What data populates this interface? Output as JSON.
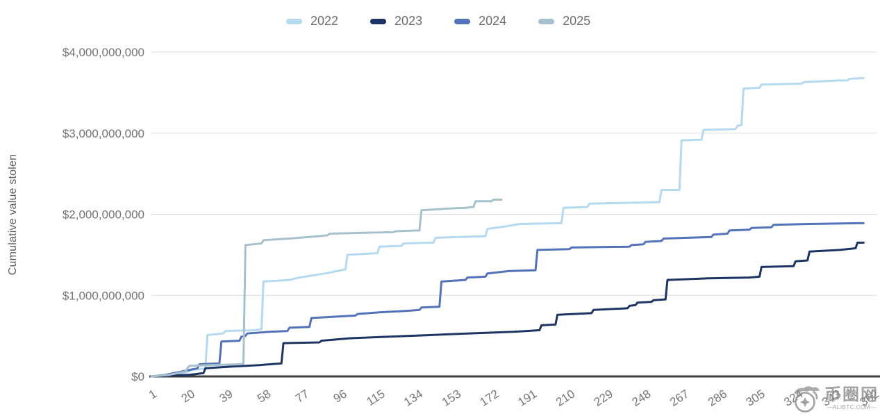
{
  "legend": {
    "items": [
      {
        "label": "2022",
        "color": "#b5d9ef"
      },
      {
        "label": "2023",
        "color": "#1c3363"
      },
      {
        "label": "2024",
        "color": "#5472ba"
      },
      {
        "label": "2025",
        "color": "#a6c1cc"
      }
    ]
  },
  "watermark": {
    "site_name": "币圈网",
    "domain": "—ALIBTC.COM—"
  },
  "chart_data": {
    "type": "line",
    "title": "",
    "xlabel": "",
    "ylabel": "Cumulative value stolen",
    "value_unit": "USD billions (cumulative value stolen by day of year)",
    "line_style": "stepped cumulative lines",
    "grid": "horizontal only",
    "legend_position": "top",
    "xlim": [
      1,
      366
    ],
    "ylim_billions": [
      0,
      4
    ],
    "x_tick_labels": [
      "1",
      "20",
      "39",
      "58",
      "77",
      "96",
      "115",
      "134",
      "153",
      "172",
      "191",
      "210",
      "229",
      "248",
      "267",
      "286",
      "305",
      "324",
      "343",
      "362"
    ],
    "y_ticks": [
      {
        "value_billions": 0,
        "label": "$0"
      },
      {
        "value_billions": 1,
        "label": "$1,000,000,000"
      },
      {
        "value_billions": 2,
        "label": "$2,000,000,000"
      },
      {
        "value_billions": 3,
        "label": "$3,000,000,000"
      },
      {
        "value_billions": 4,
        "label": "$4,000,000,000"
      }
    ],
    "series": [
      {
        "name": "2022",
        "color": "#b5d9ef",
        "points_day_billions": [
          [
            1,
            0
          ],
          [
            8,
            0.01
          ],
          [
            14,
            0.03
          ],
          [
            18,
            0.05
          ],
          [
            22,
            0.08
          ],
          [
            28,
            0.1
          ],
          [
            29,
            0.51
          ],
          [
            37,
            0.53
          ],
          [
            38,
            0.56
          ],
          [
            52,
            0.57
          ],
          [
            56,
            0.58
          ],
          [
            57,
            1.17
          ],
          [
            70,
            1.19
          ],
          [
            75,
            1.22
          ],
          [
            88,
            1.27
          ],
          [
            98,
            1.32
          ],
          [
            99,
            1.5
          ],
          [
            114,
            1.52
          ],
          [
            115,
            1.6
          ],
          [
            126,
            1.61
          ],
          [
            127,
            1.64
          ],
          [
            142,
            1.65
          ],
          [
            143,
            1.71
          ],
          [
            168,
            1.73
          ],
          [
            169,
            1.82
          ],
          [
            178,
            1.85
          ],
          [
            185,
            1.88
          ],
          [
            206,
            1.89
          ],
          [
            207,
            2.08
          ],
          [
            219,
            2.09
          ],
          [
            220,
            2.13
          ],
          [
            255,
            2.15
          ],
          [
            256,
            2.3
          ],
          [
            265,
            2.3
          ],
          [
            266,
            2.91
          ],
          [
            276,
            2.92
          ],
          [
            277,
            3.04
          ],
          [
            293,
            3.05
          ],
          [
            294,
            3.09
          ],
          [
            296,
            3.1
          ],
          [
            297,
            3.55
          ],
          [
            305,
            3.56
          ],
          [
            306,
            3.6
          ],
          [
            326,
            3.61
          ],
          [
            327,
            3.63
          ],
          [
            344,
            3.65
          ],
          [
            349,
            3.65
          ],
          [
            350,
            3.67
          ],
          [
            357,
            3.68
          ]
        ]
      },
      {
        "name": "2023",
        "color": "#1c3363",
        "points_day_billions": [
          [
            1,
            0
          ],
          [
            10,
            0.01
          ],
          [
            20,
            0.02
          ],
          [
            27,
            0.04
          ],
          [
            28,
            0.1
          ],
          [
            40,
            0.12
          ],
          [
            55,
            0.14
          ],
          [
            66,
            0.16
          ],
          [
            67,
            0.41
          ],
          [
            85,
            0.42
          ],
          [
            86,
            0.44
          ],
          [
            100,
            0.47
          ],
          [
            120,
            0.49
          ],
          [
            140,
            0.51
          ],
          [
            160,
            0.53
          ],
          [
            182,
            0.55
          ],
          [
            195,
            0.57
          ],
          [
            196,
            0.63
          ],
          [
            203,
            0.64
          ],
          [
            204,
            0.76
          ],
          [
            221,
            0.78
          ],
          [
            222,
            0.82
          ],
          [
            239,
            0.84
          ],
          [
            240,
            0.87
          ],
          [
            243,
            0.88
          ],
          [
            244,
            0.91
          ],
          [
            251,
            0.92
          ],
          [
            252,
            0.94
          ],
          [
            258,
            0.95
          ],
          [
            259,
            1.19
          ],
          [
            280,
            1.21
          ],
          [
            300,
            1.22
          ],
          [
            305,
            1.23
          ],
          [
            306,
            1.35
          ],
          [
            322,
            1.36
          ],
          [
            323,
            1.42
          ],
          [
            329,
            1.43
          ],
          [
            330,
            1.54
          ],
          [
            345,
            1.56
          ],
          [
            353,
            1.58
          ],
          [
            354,
            1.65
          ],
          [
            357,
            1.65
          ]
        ]
      },
      {
        "name": "2024",
        "color": "#5472ba",
        "points_day_billions": [
          [
            1,
            0
          ],
          [
            8,
            0.02
          ],
          [
            14,
            0.05
          ],
          [
            20,
            0.08
          ],
          [
            24,
            0.1
          ],
          [
            25,
            0.15
          ],
          [
            35,
            0.16
          ],
          [
            36,
            0.43
          ],
          [
            45,
            0.44
          ],
          [
            46,
            0.49
          ],
          [
            48,
            0.5
          ],
          [
            49,
            0.53
          ],
          [
            60,
            0.55
          ],
          [
            69,
            0.56
          ],
          [
            70,
            0.6
          ],
          [
            80,
            0.61
          ],
          [
            81,
            0.72
          ],
          [
            95,
            0.74
          ],
          [
            103,
            0.75
          ],
          [
            104,
            0.77
          ],
          [
            115,
            0.79
          ],
          [
            130,
            0.81
          ],
          [
            135,
            0.82
          ],
          [
            136,
            0.85
          ],
          [
            145,
            0.86
          ],
          [
            146,
            1.17
          ],
          [
            158,
            1.19
          ],
          [
            159,
            1.22
          ],
          [
            168,
            1.23
          ],
          [
            169,
            1.27
          ],
          [
            180,
            1.3
          ],
          [
            193,
            1.31
          ],
          [
            194,
            1.56
          ],
          [
            210,
            1.57
          ],
          [
            211,
            1.59
          ],
          [
            240,
            1.6
          ],
          [
            241,
            1.62
          ],
          [
            247,
            1.63
          ],
          [
            248,
            1.66
          ],
          [
            256,
            1.67
          ],
          [
            257,
            1.7
          ],
          [
            281,
            1.72
          ],
          [
            282,
            1.75
          ],
          [
            289,
            1.76
          ],
          [
            290,
            1.8
          ],
          [
            300,
            1.81
          ],
          [
            301,
            1.83
          ],
          [
            311,
            1.84
          ],
          [
            312,
            1.87
          ],
          [
            330,
            1.88
          ],
          [
            357,
            1.89
          ]
        ]
      },
      {
        "name": "2025",
        "color": "#a6c1cc",
        "points_day_billions": [
          [
            1,
            0
          ],
          [
            10,
            0.02
          ],
          [
            18,
            0.06
          ],
          [
            19,
            0.1
          ],
          [
            20,
            0.13
          ],
          [
            30,
            0.14
          ],
          [
            46,
            0.15
          ],
          [
            47,
            0.16
          ],
          [
            48,
            1.62
          ],
          [
            56,
            1.64
          ],
          [
            57,
            1.68
          ],
          [
            70,
            1.7
          ],
          [
            85,
            1.73
          ],
          [
            89,
            1.74
          ],
          [
            90,
            1.76
          ],
          [
            105,
            1.77
          ],
          [
            122,
            1.78
          ],
          [
            123,
            1.79
          ],
          [
            134,
            1.8
          ],
          [
            135,
            1.8
          ],
          [
            136,
            2.05
          ],
          [
            150,
            2.07
          ],
          [
            158,
            2.08
          ],
          [
            162,
            2.09
          ],
          [
            163,
            2.16
          ],
          [
            171,
            2.16
          ],
          [
            172,
            2.18
          ],
          [
            176,
            2.18
          ]
        ]
      }
    ]
  }
}
